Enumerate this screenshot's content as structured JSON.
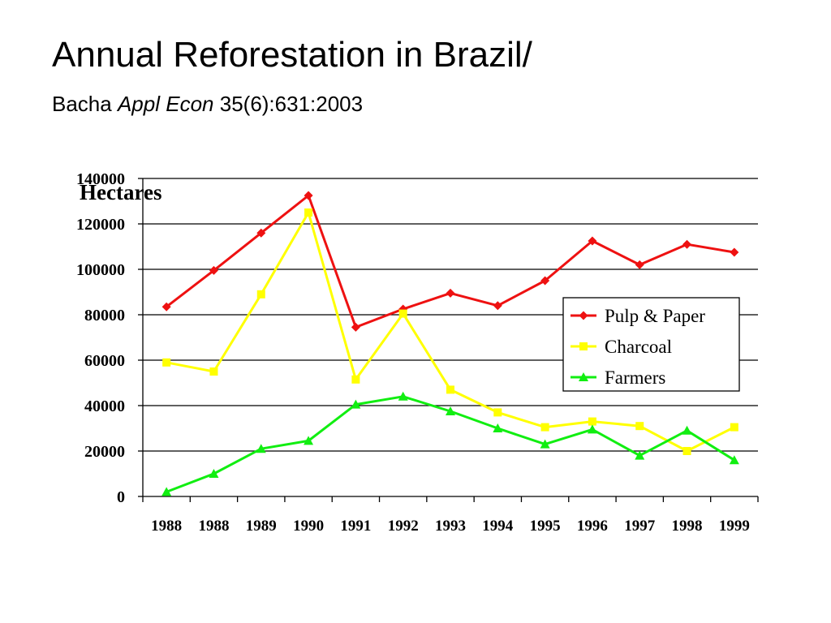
{
  "slide": {
    "title": "Annual Reforestation in Brazil/",
    "citation": {
      "author": "Bacha",
      "journal": "Appl Econ",
      "reference": "35(6):631:2003"
    }
  },
  "chart_data": {
    "type": "line",
    "title": "",
    "ylabel": "Hectares",
    "xlabel": "",
    "categories": [
      "1988",
      "1988",
      "1989",
      "1990",
      "1991",
      "1992",
      "1993",
      "1994",
      "1995",
      "1996",
      "1997",
      "1998",
      "1999"
    ],
    "ylim": [
      0,
      140000
    ],
    "yticks": [
      0,
      20000,
      40000,
      60000,
      80000,
      100000,
      120000,
      140000
    ],
    "grid": true,
    "legend_position": "right",
    "series": [
      {
        "name": "Pulp & Paper",
        "color": "#ee1111",
        "marker": "diamond",
        "values": [
          83500,
          99500,
          116000,
          132500,
          74500,
          82500,
          89500,
          84000,
          95000,
          112500,
          102000,
          111000,
          107500
        ]
      },
      {
        "name": "Charcoal",
        "color": "#ffff00",
        "marker": "square",
        "values": [
          59000,
          55000,
          89000,
          125000,
          51500,
          80500,
          47000,
          37000,
          30500,
          33000,
          31000,
          20000,
          30500
        ]
      },
      {
        "name": "Farmers",
        "color": "#11ee11",
        "marker": "triangle",
        "values": [
          2000,
          10000,
          21000,
          24500,
          40500,
          44000,
          37500,
          30000,
          23000,
          29500,
          18000,
          29000,
          16000
        ]
      }
    ]
  }
}
